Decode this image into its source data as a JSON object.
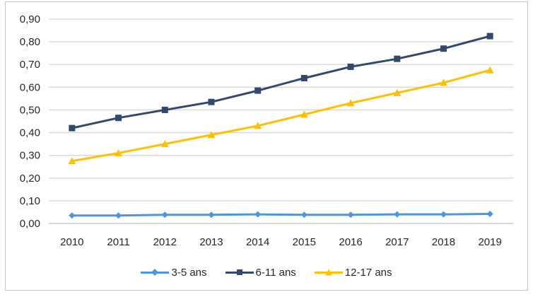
{
  "chart_data": {
    "type": "line",
    "title": "",
    "xlabel": "",
    "ylabel": "",
    "categories": [
      "2010",
      "2011",
      "2012",
      "2013",
      "2014",
      "2015",
      "2016",
      "2017",
      "2018",
      "2019"
    ],
    "series": [
      {
        "name": "3-5 ans",
        "color": "#4E95D9",
        "marker": "diamond",
        "values": [
          0.035,
          0.035,
          0.038,
          0.038,
          0.04,
          0.038,
          0.038,
          0.04,
          0.04,
          0.042
        ]
      },
      {
        "name": "6-11 ans",
        "color": "#33496B",
        "marker": "square",
        "values": [
          0.42,
          0.465,
          0.5,
          0.535,
          0.585,
          0.64,
          0.69,
          0.725,
          0.77,
          0.825
        ]
      },
      {
        "name": "12-17 ans",
        "color": "#FFC000",
        "marker": "triangle",
        "values": [
          0.275,
          0.31,
          0.35,
          0.39,
          0.43,
          0.48,
          0.53,
          0.575,
          0.62,
          0.675
        ]
      }
    ],
    "ylim": [
      0.0,
      0.9
    ],
    "ytick_step": 0.1,
    "ytick_labels": [
      "0,00",
      "0,10",
      "0,20",
      "0,30",
      "0,40",
      "0,50",
      "0,60",
      "0,70",
      "0,80",
      "0,90"
    ],
    "grid": "horizontal",
    "legend_position": "bottom"
  },
  "colors": {
    "gridline": "#D6D6D6",
    "axis_line": "#BFBFBF",
    "tick_text": "#262626",
    "frame_border": "#C6C6C6",
    "background": "#FFFFFF"
  }
}
